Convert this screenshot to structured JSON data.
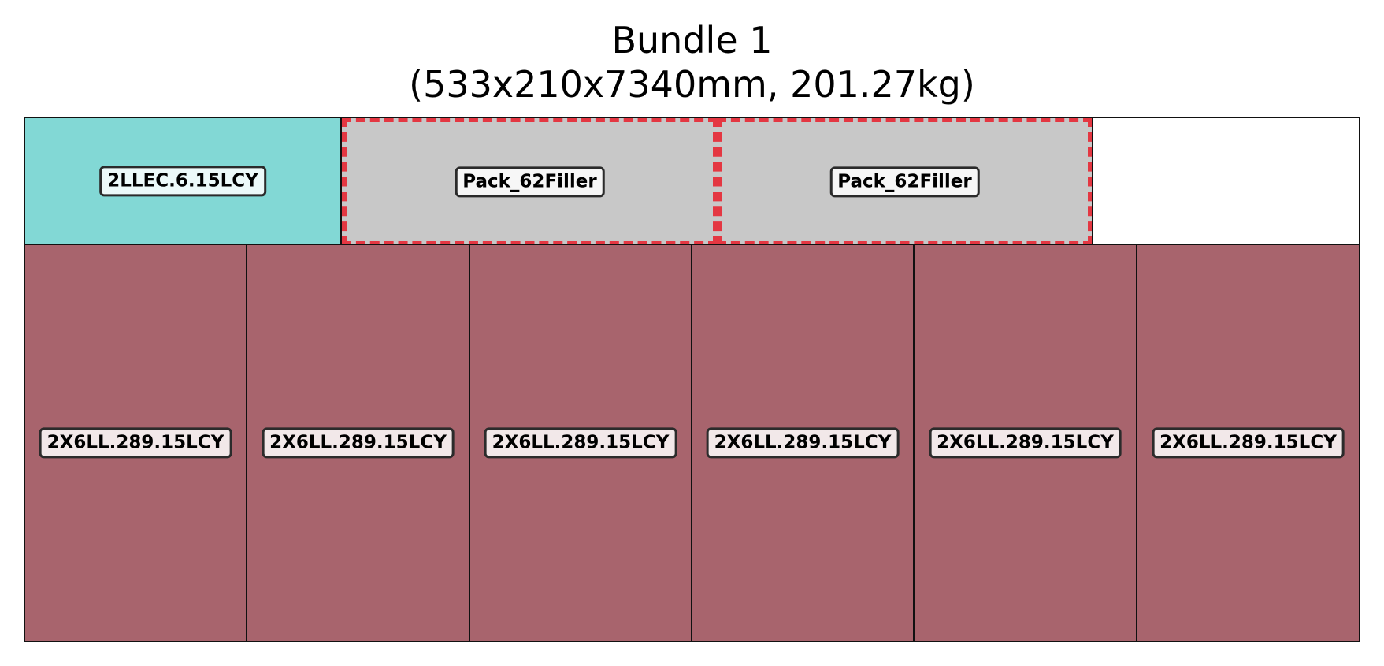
{
  "title": {
    "line1": "Bundle 1",
    "line2": "(533x210x7340mm, 201.27kg)"
  },
  "colors": {
    "teal": "#82d8d5",
    "gray": "#c8c8c8",
    "maroon": "#a8646d",
    "empty": "#ffffff",
    "dashed_outline": "#e8283a"
  },
  "top_row": [
    {
      "label": "2LLEC.6.15LCY",
      "color": "teal",
      "style": "solid"
    },
    {
      "label": "Pack_62Filler",
      "color": "gray",
      "style": "dashed"
    },
    {
      "label": "Pack_62Filler",
      "color": "gray",
      "style": "dashed"
    },
    {
      "label": "",
      "color": "empty",
      "style": "solid"
    }
  ],
  "bottom_row": [
    {
      "label": "2X6LL.289.15LCY",
      "color": "maroon"
    },
    {
      "label": "2X6LL.289.15LCY",
      "color": "maroon"
    },
    {
      "label": "2X6LL.289.15LCY",
      "color": "maroon"
    },
    {
      "label": "2X6LL.289.15LCY",
      "color": "maroon"
    },
    {
      "label": "2X6LL.289.15LCY",
      "color": "maroon"
    },
    {
      "label": "2X6LL.289.15LCY",
      "color": "maroon"
    }
  ]
}
